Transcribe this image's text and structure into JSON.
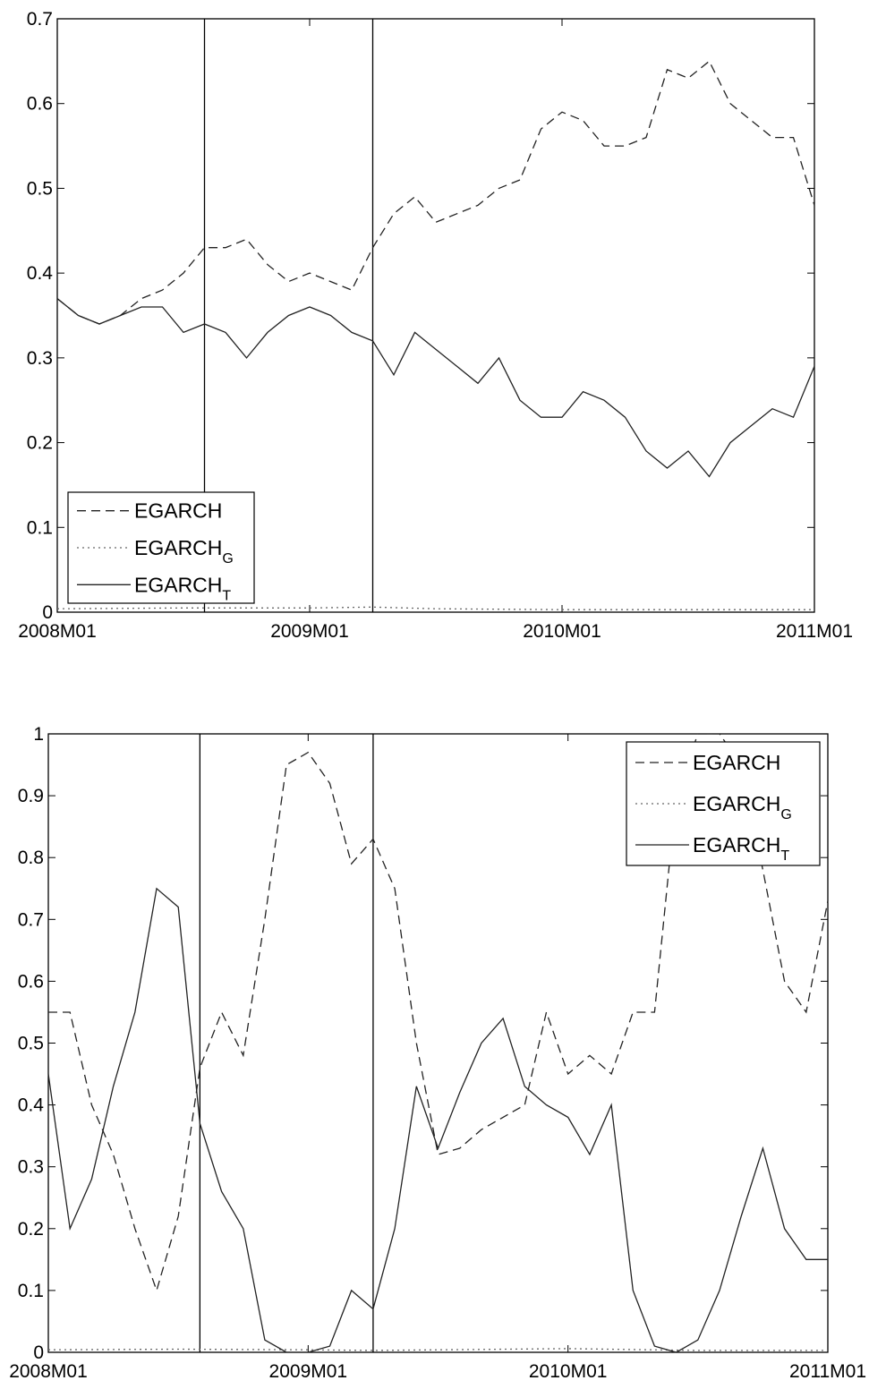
{
  "chart_data": [
    {
      "type": "line",
      "x_ticks": [
        "2008M01",
        "2009M01",
        "2010M01",
        "2011M01"
      ],
      "xlim": [
        "2008M01",
        "2011M01"
      ],
      "ylim": [
        0,
        0.7
      ],
      "y_ticks": [
        0,
        0.1,
        0.2,
        0.3,
        0.4,
        0.5,
        0.6,
        0.7
      ],
      "y_tick_labels": [
        "0",
        "0.1",
        "0.2",
        "0.3",
        "0.4",
        "0.5",
        "0.6",
        "0.7"
      ],
      "vlines": [
        "2008M08",
        "2009M04"
      ],
      "legend": {
        "position": "bottom-left"
      },
      "series": [
        {
          "name": "EGARCH",
          "style": "dashed",
          "x": [
            "2008M01",
            "2008M02",
            "2008M03",
            "2008M04",
            "2008M05",
            "2008M06",
            "2008M07",
            "2008M08",
            "2008M09",
            "2008M10",
            "2008M11",
            "2008M12",
            "2009M01",
            "2009M02",
            "2009M03",
            "2009M04",
            "2009M05",
            "2009M06",
            "2009M07",
            "2009M08",
            "2009M09",
            "2009M10",
            "2009M11",
            "2009M12",
            "2010M01",
            "2010M02",
            "2010M03",
            "2010M04",
            "2010M05",
            "2010M06",
            "2010M07",
            "2010M08",
            "2010M09",
            "2010M10",
            "2010M11",
            "2010M12",
            "2011M01"
          ],
          "values": [
            0.37,
            0.35,
            0.34,
            0.35,
            0.37,
            0.38,
            0.4,
            0.43,
            0.43,
            0.44,
            0.41,
            0.39,
            0.4,
            0.39,
            0.38,
            0.43,
            0.47,
            0.49,
            0.46,
            0.47,
            0.48,
            0.5,
            0.51,
            0.57,
            0.59,
            0.58,
            0.55,
            0.55,
            0.56,
            0.64,
            0.63,
            0.65,
            0.6,
            0.58,
            0.56,
            0.56,
            0.48
          ]
        },
        {
          "name": "EGARCH_G",
          "style": "dotted",
          "x": [
            "2008M01",
            "2008M07",
            "2009M01",
            "2009M04",
            "2009M07",
            "2010M01",
            "2010M07",
            "2011M01"
          ],
          "values": [
            0.004,
            0.005,
            0.005,
            0.006,
            0.004,
            0.003,
            0.003,
            0.003
          ]
        },
        {
          "name": "EGARCH_T",
          "style": "solid",
          "x": [
            "2008M01",
            "2008M02",
            "2008M03",
            "2008M04",
            "2008M05",
            "2008M06",
            "2008M07",
            "2008M08",
            "2008M09",
            "2008M10",
            "2008M11",
            "2008M12",
            "2009M01",
            "2009M02",
            "2009M03",
            "2009M04",
            "2009M05",
            "2009M06",
            "2009M07",
            "2009M08",
            "2009M09",
            "2009M10",
            "2009M11",
            "2009M12",
            "2010M01",
            "2010M02",
            "2010M03",
            "2010M04",
            "2010M05",
            "2010M06",
            "2010M07",
            "2010M08",
            "2010M09",
            "2010M10",
            "2010M11",
            "2010M12",
            "2011M01"
          ],
          "values": [
            0.37,
            0.35,
            0.34,
            0.35,
            0.36,
            0.36,
            0.33,
            0.34,
            0.33,
            0.3,
            0.33,
            0.35,
            0.36,
            0.35,
            0.33,
            0.32,
            0.28,
            0.33,
            0.31,
            0.29,
            0.27,
            0.3,
            0.25,
            0.23,
            0.23,
            0.26,
            0.25,
            0.23,
            0.19,
            0.17,
            0.19,
            0.16,
            0.2,
            0.22,
            0.24,
            0.23,
            0.29
          ]
        }
      ]
    },
    {
      "type": "line",
      "x_ticks": [
        "2008M01",
        "2009M01",
        "2010M01",
        "2011M01"
      ],
      "xlim": [
        "2008M01",
        "2011M01"
      ],
      "ylim": [
        0,
        1
      ],
      "y_ticks": [
        0,
        0.1,
        0.2,
        0.3,
        0.4,
        0.5,
        0.6,
        0.7,
        0.8,
        0.9,
        1
      ],
      "y_tick_labels": [
        "0",
        "0.1",
        "0.2",
        "0.3",
        "0.4",
        "0.5",
        "0.6",
        "0.7",
        "0.8",
        "0.9",
        "1"
      ],
      "vlines": [
        "2008M08",
        "2009M04"
      ],
      "legend": {
        "position": "top-right"
      },
      "series": [
        {
          "name": "EGARCH",
          "style": "dashed",
          "x": [
            "2008M01",
            "2008M02",
            "2008M03",
            "2008M04",
            "2008M05",
            "2008M06",
            "2008M07",
            "2008M08",
            "2008M09",
            "2008M10",
            "2008M11",
            "2008M12",
            "2009M01",
            "2009M02",
            "2009M03",
            "2009M04",
            "2009M05",
            "2009M06",
            "2009M07",
            "2009M08",
            "2009M09",
            "2009M10",
            "2009M11",
            "2009M12",
            "2010M01",
            "2010M02",
            "2010M03",
            "2010M04",
            "2010M05",
            "2010M06",
            "2010M07",
            "2010M08",
            "2010M09",
            "2010M10",
            "2010M11",
            "2010M12",
            "2011M01"
          ],
          "values": [
            0.55,
            0.55,
            0.4,
            0.32,
            0.2,
            0.1,
            0.22,
            0.46,
            0.55,
            0.48,
            0.7,
            0.95,
            0.97,
            0.92,
            0.79,
            0.83,
            0.75,
            0.5,
            0.32,
            0.33,
            0.36,
            0.38,
            0.4,
            0.55,
            0.45,
            0.48,
            0.45,
            0.55,
            0.55,
            0.9,
            1.0,
            1.0,
            0.95,
            0.78,
            0.6,
            0.55,
            0.73
          ]
        },
        {
          "name": "EGARCH_G",
          "style": "dotted",
          "x": [
            "2008M01",
            "2008M07",
            "2009M01",
            "2009M04",
            "2009M07",
            "2010M01",
            "2010M07",
            "2011M01"
          ],
          "values": [
            0.004,
            0.005,
            0.004,
            0.003,
            0.004,
            0.006,
            0.003,
            0.003
          ]
        },
        {
          "name": "EGARCH_T",
          "style": "solid",
          "x": [
            "2008M01",
            "2008M02",
            "2008M03",
            "2008M04",
            "2008M05",
            "2008M06",
            "2008M07",
            "2008M08",
            "2008M09",
            "2008M10",
            "2008M11",
            "2008M12",
            "2009M01",
            "2009M02",
            "2009M03",
            "2009M04",
            "2009M05",
            "2009M06",
            "2009M07",
            "2009M08",
            "2009M09",
            "2009M10",
            "2009M11",
            "2009M12",
            "2010M01",
            "2010M02",
            "2010M03",
            "2010M04",
            "2010M05",
            "2010M06",
            "2010M07",
            "2010M08",
            "2010M09",
            "2010M10",
            "2010M11",
            "2010M12",
            "2011M01"
          ],
          "values": [
            0.45,
            0.2,
            0.28,
            0.43,
            0.55,
            0.75,
            0.72,
            0.37,
            0.26,
            0.2,
            0.02,
            0.0,
            0.0,
            0.01,
            0.1,
            0.07,
            0.2,
            0.43,
            0.33,
            0.42,
            0.5,
            0.54,
            0.43,
            0.4,
            0.38,
            0.32,
            0.4,
            0.1,
            0.01,
            0.0,
            0.02,
            0.1,
            0.22,
            0.33,
            0.2,
            0.15,
            0.15
          ]
        }
      ]
    }
  ]
}
